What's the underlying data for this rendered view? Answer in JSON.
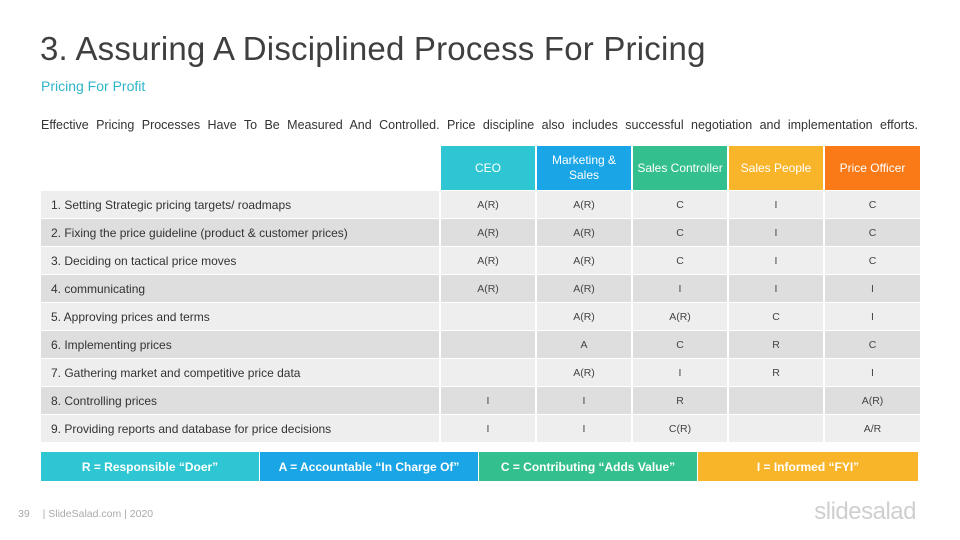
{
  "slide": {
    "title": "3. Assuring A Disciplined Process For Pricing",
    "subtitle": "Pricing For Profit",
    "intro": "Effective Pricing Processes Have To Be Measured And Controlled. Price discipline also includes successful negotiation and implementation efforts."
  },
  "colors": {
    "ceo": "#2ec6d3",
    "marketing": "#1aa5e6",
    "sales_controller": "#34c08e",
    "sales_people": "#f9b52a",
    "price_officer": "#f97a17"
  },
  "table": {
    "headers": [
      "CEO",
      "Marketing & Sales",
      "Sales Controller",
      "Sales People",
      "Price Officer"
    ],
    "rows": [
      {
        "label": "1. Setting Strategic pricing targets/ roadmaps",
        "values": [
          "A(R)",
          "A(R)",
          "C",
          "I",
          "C"
        ]
      },
      {
        "label": "2. Fixing the price guideline (product & customer prices)",
        "values": [
          "A(R)",
          "A(R)",
          "C",
          "I",
          "C"
        ]
      },
      {
        "label": "3. Deciding on tactical price moves",
        "values": [
          "A(R)",
          "A(R)",
          "C",
          "I",
          "C"
        ]
      },
      {
        "label": "4. communicating",
        "values": [
          "A(R)",
          "A(R)",
          "I",
          "I",
          "I"
        ]
      },
      {
        "label": "5. Approving prices and terms",
        "values": [
          "",
          "A(R)",
          "A(R)",
          "C",
          "I"
        ]
      },
      {
        "label": "6. Implementing prices",
        "values": [
          "",
          "A",
          "C",
          "R",
          "C"
        ]
      },
      {
        "label": "7. Gathering market and competitive price data",
        "values": [
          "",
          "A(R)",
          "I",
          "R",
          "I"
        ]
      },
      {
        "label": "8. Controlling prices",
        "values": [
          "I",
          "I",
          "R",
          "",
          "A(R)"
        ]
      },
      {
        "label": "9. Providing reports and database for price decisions",
        "values": [
          "I",
          "I",
          "C(R)",
          "",
          "A/R"
        ]
      }
    ]
  },
  "legend": [
    {
      "text": "R = Responsible “Doer”",
      "color": "#2ec6d3"
    },
    {
      "text": "A = Accountable “In Charge Of”",
      "color": "#1aa5e6"
    },
    {
      "text": "C = Contributing “Adds Value”",
      "color": "#34c08e"
    },
    {
      "text": "I = Informed “FYI”",
      "color": "#f9b52a"
    }
  ],
  "footer": {
    "page": "39",
    "credit": "| SlideSalad.com | 2020",
    "brand": "slidesalad"
  }
}
